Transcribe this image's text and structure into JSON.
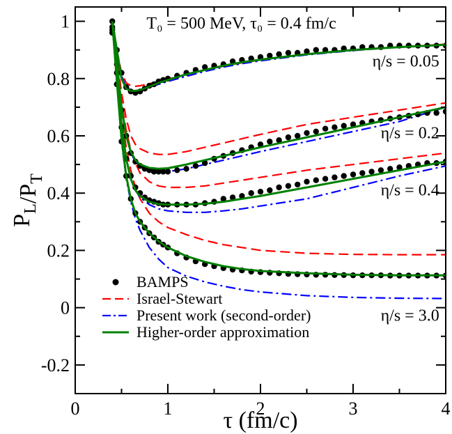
{
  "chart_data": {
    "type": "line",
    "title": "",
    "xlabel": "τ (fm/c)",
    "ylabel": "P_L/P_T",
    "xlim": [
      0,
      4
    ],
    "ylim": [
      -0.3,
      1.05
    ],
    "x_ticks": [
      0,
      1,
      2,
      3,
      4
    ],
    "x_tick_labels": [
      "0",
      "1",
      "2",
      "3",
      "4"
    ],
    "y_ticks": [
      -0.2,
      0,
      0.2,
      0.4,
      0.6,
      0.8,
      1
    ],
    "y_tick_labels": [
      "-0.2",
      "0",
      "0.2",
      "0.4",
      "0.6",
      "0.8",
      "1"
    ],
    "grid": false,
    "legend_position": "bottom-left",
    "annotations": [
      {
        "text": "T₀ = 500 MeV,  τ₀ = 0.4 fm/c",
        "x": 0.77,
        "y": 0.975,
        "anchor": "start"
      },
      {
        "text": "η/s = 0.05",
        "x": 3.93,
        "y": 0.842,
        "anchor": "end"
      },
      {
        "text": "η/s = 0.2",
        "x": 3.93,
        "y": 0.592,
        "anchor": "end"
      },
      {
        "text": "η/s = 0.4",
        "x": 3.93,
        "y": 0.392,
        "anchor": "end"
      },
      {
        "text": "η/s = 3.0",
        "x": 3.93,
        "y": -0.046,
        "anchor": "end"
      }
    ],
    "series": [
      {
        "name": "BAMPS",
        "style": "dots",
        "color": "#000000",
        "groups": [
          {
            "x": [
              0.4,
              0.45,
              0.5,
              0.55,
              0.6,
              0.65,
              0.7,
              0.75,
              0.8,
              0.85,
              0.9,
              0.95,
              1.0,
              1.1,
              1.2,
              1.3,
              1.4,
              1.5,
              1.6,
              1.7,
              1.8,
              1.9,
              2.0,
              2.1,
              2.2,
              2.3,
              2.4,
              2.5,
              2.6,
              2.7,
              2.8,
              2.9,
              3.0,
              3.1,
              3.2,
              3.3,
              3.4,
              3.5,
              3.6,
              3.7,
              3.8,
              3.9,
              4.0
            ],
            "y": [
              1.0,
              0.9,
              0.82,
              0.77,
              0.755,
              0.75,
              0.755,
              0.765,
              0.775,
              0.78,
              0.79,
              0.795,
              0.8,
              0.81,
              0.82,
              0.83,
              0.84,
              0.845,
              0.85,
              0.86,
              0.865,
              0.87,
              0.875,
              0.88,
              0.885,
              0.89,
              0.89,
              0.895,
              0.9,
              0.9,
              0.9,
              0.905,
              0.905,
              0.91,
              0.91,
              0.91,
              0.915,
              0.915,
              0.915,
              0.915,
              0.915,
              0.915,
              0.915
            ]
          },
          {
            "x": [
              0.4,
              0.45,
              0.5,
              0.55,
              0.6,
              0.65,
              0.7,
              0.75,
              0.8,
              0.85,
              0.9,
              0.95,
              1.0,
              1.1,
              1.2,
              1.3,
              1.4,
              1.5,
              1.6,
              1.7,
              1.8,
              1.9,
              2.0,
              2.1,
              2.2,
              2.3,
              2.4,
              2.5,
              2.6,
              2.7,
              2.8,
              2.9,
              3.0,
              3.1,
              3.2,
              3.3,
              3.4,
              3.5,
              3.6,
              3.7,
              3.8,
              3.9,
              4.0
            ],
            "y": [
              0.98,
              0.85,
              0.69,
              0.6,
              0.54,
              0.51,
              0.495,
              0.485,
              0.48,
              0.475,
              0.475,
              0.475,
              0.475,
              0.48,
              0.485,
              0.495,
              0.505,
              0.52,
              0.53,
              0.54,
              0.55,
              0.56,
              0.57,
              0.58,
              0.585,
              0.595,
              0.6,
              0.61,
              0.615,
              0.625,
              0.63,
              0.635,
              0.64,
              0.645,
              0.65,
              0.655,
              0.66,
              0.665,
              0.67,
              0.675,
              0.68,
              0.68,
              0.685
            ]
          },
          {
            "x": [
              0.4,
              0.45,
              0.5,
              0.55,
              0.6,
              0.65,
              0.7,
              0.75,
              0.8,
              0.85,
              0.9,
              0.95,
              1.0,
              1.1,
              1.2,
              1.3,
              1.4,
              1.5,
              1.6,
              1.7,
              1.8,
              1.9,
              2.0,
              2.1,
              2.2,
              2.3,
              2.4,
              2.5,
              2.6,
              2.7,
              2.8,
              2.9,
              3.0,
              3.1,
              3.2,
              3.3,
              3.4,
              3.5,
              3.6,
              3.7,
              3.8,
              3.9,
              4.0
            ],
            "y": [
              0.97,
              0.82,
              0.63,
              0.52,
              0.46,
              0.42,
              0.4,
              0.385,
              0.375,
              0.37,
              0.365,
              0.36,
              0.36,
              0.36,
              0.36,
              0.36,
              0.365,
              0.37,
              0.38,
              0.385,
              0.39,
              0.4,
              0.405,
              0.41,
              0.42,
              0.425,
              0.43,
              0.44,
              0.445,
              0.45,
              0.455,
              0.46,
              0.465,
              0.47,
              0.475,
              0.48,
              0.485,
              0.49,
              0.495,
              0.5,
              0.505,
              0.505,
              0.51
            ]
          },
          {
            "x": [
              0.4,
              0.45,
              0.5,
              0.55,
              0.6,
              0.65,
              0.7,
              0.75,
              0.8,
              0.85,
              0.9,
              0.95,
              1.0,
              1.1,
              1.2,
              1.3,
              1.4,
              1.5,
              1.6,
              1.7,
              1.8,
              1.9,
              2.0,
              2.1,
              2.2,
              2.3,
              2.4,
              2.5,
              2.6,
              2.7,
              2.8,
              2.9,
              3.0,
              3.1,
              3.2,
              3.3,
              3.4,
              3.5,
              3.6,
              3.7,
              3.8,
              3.9,
              4.0
            ],
            "y": [
              0.96,
              0.78,
              0.58,
              0.46,
              0.38,
              0.33,
              0.3,
              0.28,
              0.26,
              0.245,
              0.23,
              0.22,
              0.21,
              0.19,
              0.175,
              0.162,
              0.152,
              0.145,
              0.138,
              0.133,
              0.13,
              0.126,
              0.124,
              0.122,
              0.12,
              0.118,
              0.117,
              0.116,
              0.115,
              0.115,
              0.114,
              0.114,
              0.113,
              0.113,
              0.113,
              0.113,
              0.112,
              0.112,
              0.112,
              0.112,
              0.112,
              0.112,
              0.112
            ]
          }
        ]
      },
      {
        "name": "Israel-Stewart",
        "style": "dashed",
        "color": "#ff0000",
        "groups": [
          {
            "x": [
              0.4,
              0.45,
              0.5,
              0.55,
              0.6,
              0.65,
              0.7,
              0.8,
              0.9,
              1.0,
              1.2,
              1.4,
              1.6,
              1.8,
              2.0,
              2.5,
              3.0,
              3.5,
              4.0
            ],
            "y": [
              1.0,
              0.9,
              0.82,
              0.785,
              0.775,
              0.773,
              0.775,
              0.782,
              0.79,
              0.798,
              0.815,
              0.83,
              0.843,
              0.855,
              0.865,
              0.885,
              0.9,
              0.91,
              0.92
            ]
          },
          {
            "x": [
              0.4,
              0.45,
              0.5,
              0.55,
              0.6,
              0.65,
              0.7,
              0.8,
              0.9,
              1.0,
              1.2,
              1.4,
              1.6,
              1.8,
              2.0,
              2.5,
              3.0,
              3.5,
              4.0
            ],
            "y": [
              1.0,
              0.88,
              0.75,
              0.66,
              0.6,
              0.57,
              0.555,
              0.54,
              0.535,
              0.535,
              0.545,
              0.56,
              0.575,
              0.59,
              0.605,
              0.64,
              0.665,
              0.69,
              0.715
            ]
          },
          {
            "x": [
              0.4,
              0.45,
              0.5,
              0.55,
              0.6,
              0.65,
              0.7,
              0.8,
              0.9,
              1.0,
              1.2,
              1.4,
              1.6,
              1.8,
              2.0,
              2.5,
              3.0,
              3.5,
              4.0
            ],
            "y": [
              1.0,
              0.86,
              0.72,
              0.62,
              0.55,
              0.505,
              0.47,
              0.44,
              0.425,
              0.42,
              0.42,
              0.425,
              0.435,
              0.445,
              0.455,
              0.48,
              0.5,
              0.52,
              0.54
            ]
          },
          {
            "x": [
              0.4,
              0.45,
              0.5,
              0.55,
              0.6,
              0.65,
              0.7,
              0.8,
              0.9,
              1.0,
              1.2,
              1.4,
              1.6,
              1.8,
              2.0,
              2.5,
              3.0,
              3.5,
              4.0
            ],
            "y": [
              1.0,
              0.83,
              0.67,
              0.56,
              0.48,
              0.42,
              0.38,
              0.33,
              0.3,
              0.28,
              0.255,
              0.235,
              0.22,
              0.21,
              0.2,
              0.19,
              0.186,
              0.185,
              0.185
            ]
          }
        ]
      },
      {
        "name": "Present work (second-order)",
        "style": "dashdot",
        "color": "#0000ff",
        "groups": [
          {
            "x": [
              0.4,
              0.45,
              0.5,
              0.55,
              0.6,
              0.65,
              0.7,
              0.8,
              0.9,
              1.0,
              1.2,
              1.4,
              1.6,
              1.8,
              2.0,
              2.5,
              3.0,
              3.5,
              4.0
            ],
            "y": [
              1.0,
              0.9,
              0.81,
              0.77,
              0.76,
              0.757,
              0.76,
              0.77,
              0.78,
              0.79,
              0.808,
              0.825,
              0.84,
              0.852,
              0.862,
              0.883,
              0.898,
              0.91,
              0.918
            ]
          },
          {
            "x": [
              0.4,
              0.45,
              0.5,
              0.55,
              0.6,
              0.65,
              0.7,
              0.8,
              0.9,
              1.0,
              1.2,
              1.4,
              1.6,
              1.8,
              2.0,
              2.5,
              3.0,
              3.5,
              4.0
            ],
            "y": [
              1.0,
              0.86,
              0.7,
              0.6,
              0.54,
              0.51,
              0.495,
              0.48,
              0.475,
              0.475,
              0.485,
              0.5,
              0.515,
              0.53,
              0.545,
              0.58,
              0.615,
              0.65,
              0.7
            ]
          },
          {
            "x": [
              0.4,
              0.45,
              0.5,
              0.55,
              0.6,
              0.65,
              0.7,
              0.8,
              0.9,
              1.0,
              1.2,
              1.4,
              1.6,
              1.8,
              2.0,
              2.5,
              3.0,
              3.5,
              4.0
            ],
            "y": [
              1.0,
              0.83,
              0.64,
              0.52,
              0.45,
              0.41,
              0.385,
              0.36,
              0.345,
              0.338,
              0.333,
              0.333,
              0.338,
              0.345,
              0.355,
              0.38,
              0.42,
              0.46,
              0.495
            ]
          },
          {
            "x": [
              0.4,
              0.45,
              0.5,
              0.55,
              0.6,
              0.65,
              0.7,
              0.8,
              0.9,
              1.0,
              1.2,
              1.4,
              1.6,
              1.8,
              2.0,
              2.5,
              3.0,
              3.5,
              4.0
            ],
            "y": [
              1.0,
              0.79,
              0.58,
              0.45,
              0.37,
              0.31,
              0.27,
              0.21,
              0.17,
              0.14,
              0.11,
              0.09,
              0.075,
              0.063,
              0.055,
              0.042,
              0.036,
              0.033,
              0.032
            ]
          }
        ]
      },
      {
        "name": "Higher-order approximation",
        "style": "solid",
        "color": "#008000",
        "groups": [
          {
            "x": [
              0.4,
              0.45,
              0.5,
              0.55,
              0.6,
              0.65,
              0.7,
              0.8,
              0.9,
              1.0,
              1.2,
              1.4,
              1.6,
              1.8,
              2.0,
              2.5,
              3.0,
              3.5,
              4.0
            ],
            "y": [
              1.0,
              0.9,
              0.8,
              0.765,
              0.757,
              0.757,
              0.76,
              0.772,
              0.785,
              0.795,
              0.815,
              0.83,
              0.845,
              0.857,
              0.866,
              0.885,
              0.9,
              0.91,
              0.918
            ]
          },
          {
            "x": [
              0.4,
              0.45,
              0.5,
              0.55,
              0.6,
              0.65,
              0.7,
              0.8,
              0.9,
              1.0,
              1.2,
              1.4,
              1.6,
              1.8,
              2.0,
              2.5,
              3.0,
              3.5,
              4.0
            ],
            "y": [
              1.0,
              0.86,
              0.7,
              0.6,
              0.545,
              0.515,
              0.5,
              0.488,
              0.485,
              0.487,
              0.5,
              0.515,
              0.53,
              0.545,
              0.56,
              0.595,
              0.63,
              0.665,
              0.7
            ]
          },
          {
            "x": [
              0.4,
              0.45,
              0.5,
              0.55,
              0.6,
              0.65,
              0.7,
              0.8,
              0.9,
              1.0,
              1.2,
              1.4,
              1.6,
              1.8,
              2.0,
              2.5,
              3.0,
              3.5,
              4.0
            ],
            "y": [
              1.0,
              0.83,
              0.64,
              0.52,
              0.45,
              0.41,
              0.39,
              0.37,
              0.362,
              0.36,
              0.36,
              0.363,
              0.37,
              0.38,
              0.39,
              0.42,
              0.45,
              0.48,
              0.51
            ]
          },
          {
            "x": [
              0.4,
              0.45,
              0.5,
              0.55,
              0.6,
              0.65,
              0.7,
              0.8,
              0.9,
              1.0,
              1.2,
              1.4,
              1.6,
              1.8,
              2.0,
              2.5,
              3.0,
              3.5,
              4.0
            ],
            "y": [
              1.0,
              0.79,
              0.59,
              0.46,
              0.38,
              0.33,
              0.3,
              0.26,
              0.232,
              0.21,
              0.18,
              0.16,
              0.145,
              0.135,
              0.128,
              0.12,
              0.115,
              0.113,
              0.113
            ]
          }
        ]
      }
    ]
  }
}
